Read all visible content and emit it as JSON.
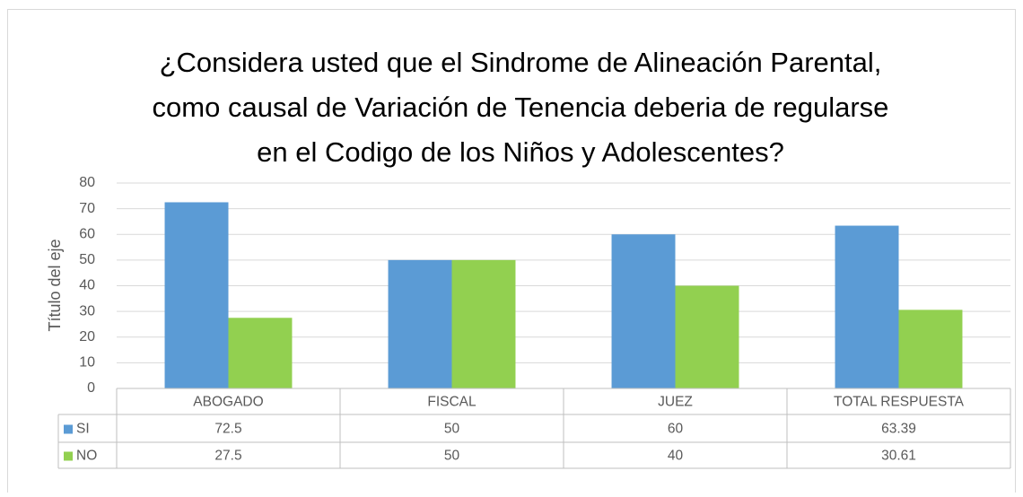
{
  "chart_data": {
    "type": "bar",
    "title": [
      "¿Considera usted que el Sindrome de Alineación Parental,",
      "como causal de Variación de Tenencia deberia de regularse",
      "en el Codigo  de los Niños y Adolescentes?"
    ],
    "y_label": "Título del eje",
    "categories": [
      "ABOGADO",
      "FISCAL",
      "JUEZ",
      "TOTAL RESPUESTA"
    ],
    "series": [
      {
        "name": "SI",
        "color": "#5b9bd5",
        "values": [
          72.5,
          50,
          60,
          63.39
        ]
      },
      {
        "name": "NO",
        "color": "#92d050",
        "values": [
          27.5,
          50,
          40,
          30.61
        ]
      }
    ],
    "ylim": [
      0,
      80
    ],
    "yticks": [
      0,
      10,
      20,
      30,
      40,
      50,
      60,
      70,
      80
    ],
    "grid": true,
    "data_table": true
  }
}
